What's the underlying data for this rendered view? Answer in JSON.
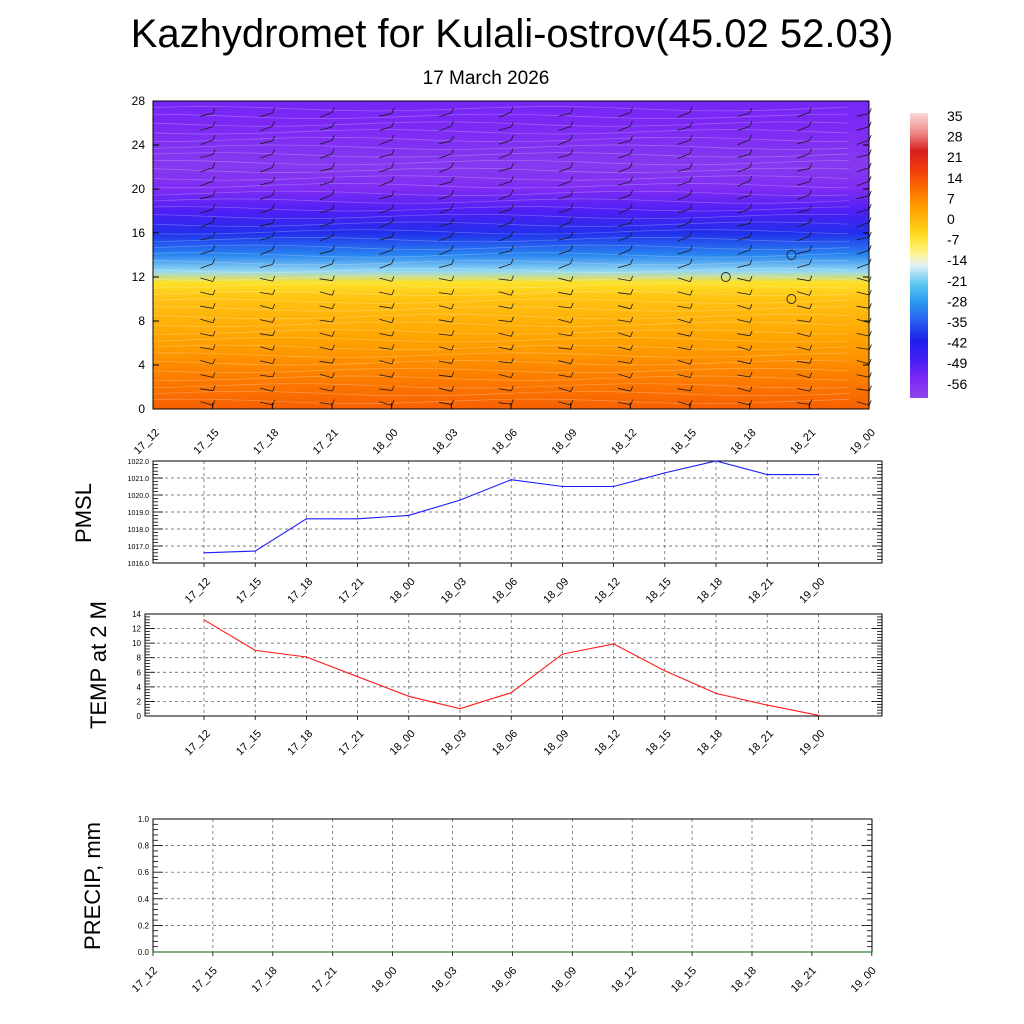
{
  "title": "Kazhydromet for Kulali-ostrov(45.02 52.03)",
  "subtitle": "17 March 2026",
  "time_labels": [
    "17_12",
    "17_15",
    "17_18",
    "17_21",
    "18_00",
    "18_03",
    "18_06",
    "18_09",
    "18_12",
    "18_15",
    "18_18",
    "18_21",
    "19_00"
  ],
  "colors": {
    "pmsl_line": "#1a1aff",
    "temp_line": "#ff1a1a",
    "precip_line": "#006600",
    "grid": "#555555"
  },
  "chart_data": [
    {
      "type": "heatmap",
      "name": "temperature cross-section with wind barbs",
      "xlabel": "",
      "ylabel": "",
      "yticks": [
        0,
        4,
        8,
        12,
        16,
        20,
        24,
        28
      ],
      "ylim": [
        0,
        28
      ],
      "x": [
        "17_12",
        "17_15",
        "17_18",
        "17_21",
        "18_00",
        "18_03",
        "18_06",
        "18_09",
        "18_12",
        "18_15",
        "18_18",
        "18_21",
        "19_00"
      ],
      "colorbar_labels": [
        "35",
        "28",
        "21",
        "14",
        "7",
        "0",
        "-7",
        "-14",
        "-21",
        "-28",
        "-35",
        "-42",
        "-49",
        "-56"
      ],
      "colorbar_range": [
        -63,
        42
      ],
      "profile_levels": [
        0,
        2,
        4,
        6,
        8,
        10,
        11.5,
        12.5,
        14,
        16,
        18,
        20,
        22,
        24,
        26,
        28
      ],
      "profile_values": [
        16,
        13,
        10,
        7,
        4,
        1,
        -4,
        -18,
        -30,
        -40,
        -50,
        -57,
        -60,
        -58,
        -56,
        -55
      ]
    },
    {
      "type": "line",
      "name": "PMSL",
      "ylabel": "PMSL",
      "x": [
        "17_12",
        "17_15",
        "17_18",
        "17_21",
        "18_00",
        "18_03",
        "18_06",
        "18_09",
        "18_12",
        "18_15",
        "18_18",
        "18_21",
        "19_00"
      ],
      "values": [
        1016.6,
        1016.7,
        1018.6,
        1018.6,
        1018.8,
        1019.7,
        1020.9,
        1020.5,
        1020.5,
        1021.3,
        1022.0,
        1021.2,
        1021.2
      ],
      "ylim": [
        1016.0,
        1022.0
      ],
      "yticks": [
        "1016.0",
        "1017.0",
        "1018.0",
        "1019.0",
        "1020.0",
        "1021.0",
        "1022.0"
      ]
    },
    {
      "type": "line",
      "name": "TEMP at 2 M",
      "ylabel": "TEMP at 2 M",
      "x": [
        "17_12",
        "17_15",
        "17_18",
        "17_21",
        "18_00",
        "18_03",
        "18_06",
        "18_09",
        "18_12",
        "18_15",
        "18_18",
        "18_21",
        "19_00"
      ],
      "values": [
        13.2,
        9.0,
        8.1,
        5.4,
        2.7,
        1.0,
        3.2,
        8.5,
        9.9,
        6.2,
        3.1,
        1.5,
        0.1
      ],
      "ylim": [
        0,
        14
      ],
      "yticks": [
        "0",
        "2",
        "4",
        "6",
        "8",
        "10",
        "12",
        "14"
      ]
    },
    {
      "type": "line",
      "name": "PRECIP, mm",
      "ylabel": "PRECIP, mm",
      "x": [
        "17_12",
        "17_15",
        "17_18",
        "17_21",
        "18_00",
        "18_03",
        "18_06",
        "18_09",
        "18_12",
        "18_15",
        "18_18",
        "18_21",
        "19_00"
      ],
      "values": [
        0,
        0,
        0,
        0,
        0,
        0,
        0,
        0,
        0,
        0,
        0,
        0,
        0
      ],
      "ylim": [
        0.0,
        1.0
      ],
      "yticks": [
        "0.0",
        "0.2",
        "0.4",
        "0.6",
        "0.8",
        "1.0"
      ]
    }
  ]
}
